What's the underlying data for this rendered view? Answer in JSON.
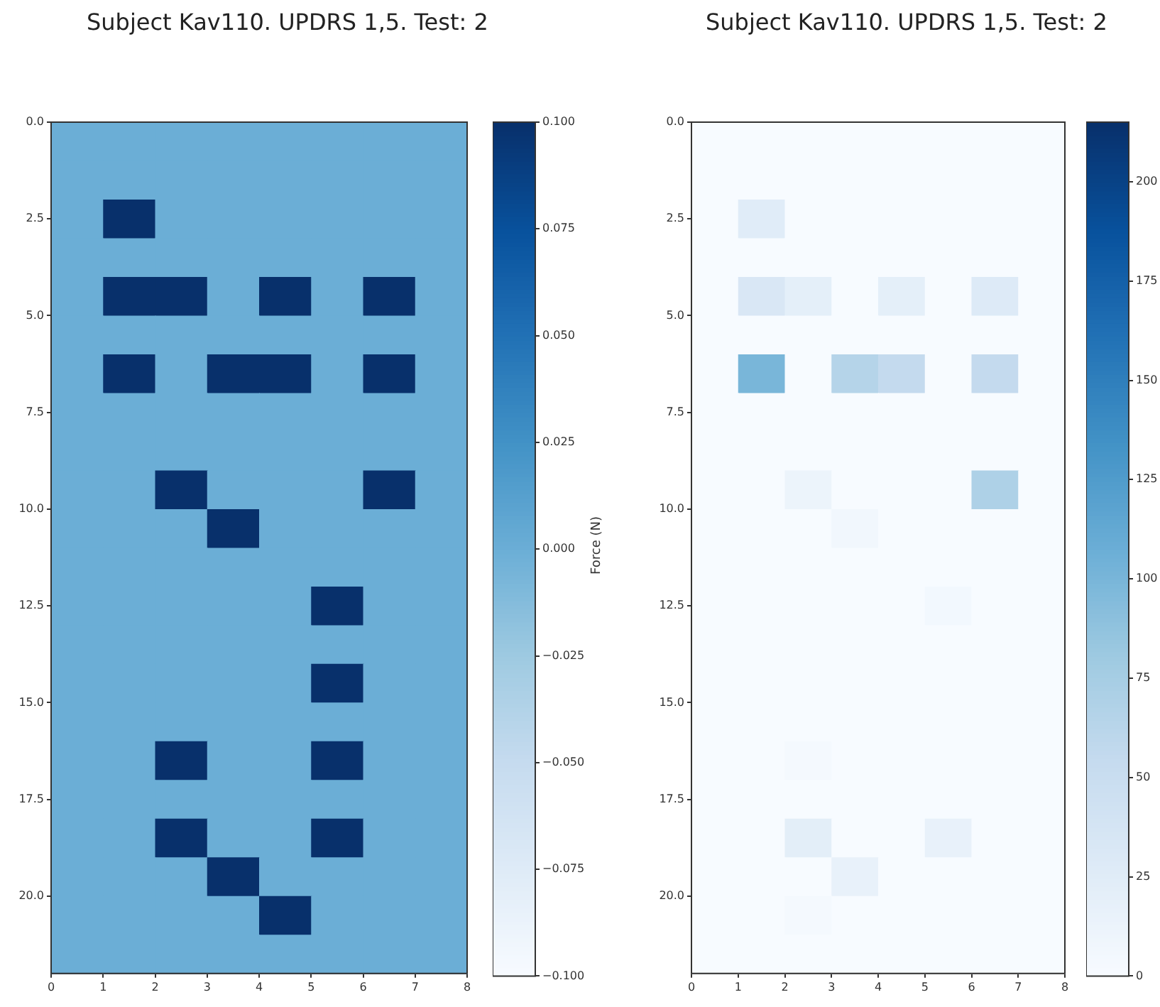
{
  "chart_data": [
    {
      "type": "heatmap",
      "title": "Subject Kav110. UPDRS 1,5. Test: 2",
      "clabel": "Force (N)",
      "xlim": [
        0,
        8
      ],
      "xticks": [
        0,
        1,
        2,
        3,
        4,
        5,
        6,
        7,
        8
      ],
      "ylim": [
        22,
        0
      ],
      "yticks": [
        {
          "value": 0,
          "label": "0.0"
        },
        {
          "value": 2.5,
          "label": "2.5"
        },
        {
          "value": 5,
          "label": "5.0"
        },
        {
          "value": 7.5,
          "label": "7.5"
        },
        {
          "value": 10,
          "label": "10.0"
        },
        {
          "value": 12.5,
          "label": "12.5"
        },
        {
          "value": 15,
          "label": "15.0"
        },
        {
          "value": 17.5,
          "label": "17.5"
        },
        {
          "value": 20,
          "label": "20.0"
        }
      ],
      "clim": [
        -0.1,
        0.1
      ],
      "cticks": [
        {
          "value": -0.1,
          "label": "−0.100"
        },
        {
          "value": -0.075,
          "label": "−0.075"
        },
        {
          "value": -0.05,
          "label": "−0.050"
        },
        {
          "value": -0.025,
          "label": "−0.025"
        },
        {
          "value": 0,
          "label": "0.000"
        },
        {
          "value": 0.025,
          "label": "0.025"
        },
        {
          "value": 0.05,
          "label": "0.050"
        },
        {
          "value": 0.075,
          "label": "0.075"
        },
        {
          "value": 0.1,
          "label": "0.100"
        }
      ],
      "cells": [
        [
          0,
          0,
          0,
          0,
          0,
          0,
          0,
          0
        ],
        [
          0,
          0,
          0,
          0,
          0,
          0,
          0,
          0
        ],
        [
          0,
          0.1,
          0,
          0,
          0,
          0,
          0,
          0
        ],
        [
          0,
          0,
          0,
          0,
          0,
          0,
          0,
          0
        ],
        [
          0,
          0.1,
          0.1,
          0,
          0.1,
          0,
          0.1,
          0
        ],
        [
          0,
          0,
          0,
          0,
          0,
          0,
          0,
          0
        ],
        [
          0,
          0.1,
          0,
          0.1,
          0.1,
          0,
          0.1,
          0
        ],
        [
          0,
          0,
          0,
          0,
          0,
          0,
          0,
          0
        ],
        [
          0,
          0,
          0,
          0,
          0,
          0,
          0,
          0
        ],
        [
          0,
          0,
          0.1,
          0,
          0,
          0,
          0.1,
          0
        ],
        [
          0,
          0,
          0,
          0.1,
          0,
          0,
          0,
          0
        ],
        [
          0,
          0,
          0,
          0,
          0,
          0,
          0,
          0
        ],
        [
          0,
          0,
          0,
          0,
          0,
          0.1,
          0,
          0
        ],
        [
          0,
          0,
          0,
          0,
          0,
          0,
          0,
          0
        ],
        [
          0,
          0,
          0,
          0,
          0,
          0.1,
          0,
          0
        ],
        [
          0,
          0,
          0,
          0,
          0,
          0,
          0,
          0
        ],
        [
          0,
          0,
          0.1,
          0,
          0,
          0.1,
          0,
          0
        ],
        [
          0,
          0,
          0,
          0,
          0,
          0,
          0,
          0
        ],
        [
          0,
          0,
          0.1,
          0,
          0,
          0.1,
          0,
          0
        ],
        [
          0,
          0,
          0,
          0.1,
          0,
          0,
          0,
          0
        ],
        [
          0,
          0,
          0,
          0,
          0.1,
          0,
          0,
          0
        ],
        [
          0,
          0,
          0,
          0,
          0,
          0,
          0,
          0
        ]
      ]
    },
    {
      "type": "heatmap",
      "title": "Subject Kav110. UPDRS 1,5. Test: 2",
      "xlim": [
        0,
        8
      ],
      "xticks": [
        0,
        1,
        2,
        3,
        4,
        5,
        6,
        7,
        8
      ],
      "ylim": [
        22,
        0
      ],
      "yticks": [
        {
          "value": 0,
          "label": "0.0"
        },
        {
          "value": 2.5,
          "label": "2.5"
        },
        {
          "value": 5,
          "label": "5.0"
        },
        {
          "value": 7.5,
          "label": "7.5"
        },
        {
          "value": 10,
          "label": "10.0"
        },
        {
          "value": 12.5,
          "label": "12.5"
        },
        {
          "value": 15,
          "label": "15.0"
        },
        {
          "value": 17.5,
          "label": "17.5"
        },
        {
          "value": 20,
          "label": "20.0"
        }
      ],
      "clim": [
        0,
        215
      ],
      "cticks": [
        0,
        25,
        50,
        75,
        100,
        125,
        150,
        175,
        200
      ],
      "cells": [
        [
          0,
          0,
          0,
          0,
          0,
          0,
          0,
          0
        ],
        [
          0,
          0,
          0,
          0,
          0,
          0,
          0,
          0
        ],
        [
          0,
          25,
          0,
          0,
          0,
          0,
          0,
          0
        ],
        [
          0,
          0,
          0,
          0,
          0,
          0,
          0,
          0
        ],
        [
          0,
          33,
          20,
          0,
          20,
          0,
          28,
          0
        ],
        [
          0,
          0,
          0,
          0,
          0,
          0,
          0,
          0
        ],
        [
          0,
          100,
          0,
          65,
          55,
          0,
          55,
          0
        ],
        [
          0,
          0,
          0,
          0,
          0,
          0,
          0,
          0
        ],
        [
          0,
          0,
          0,
          0,
          0,
          0,
          0,
          0
        ],
        [
          0,
          0,
          12,
          0,
          0,
          0,
          70,
          0
        ],
        [
          0,
          0,
          0,
          6,
          0,
          0,
          0,
          0
        ],
        [
          0,
          0,
          0,
          0,
          0,
          0,
          0,
          0
        ],
        [
          0,
          0,
          0,
          0,
          0,
          5,
          0,
          0
        ],
        [
          0,
          0,
          0,
          0,
          0,
          0,
          0,
          0
        ],
        [
          0,
          0,
          0,
          0,
          0,
          0,
          0,
          0
        ],
        [
          0,
          0,
          0,
          0,
          0,
          0,
          0,
          0
        ],
        [
          0,
          0,
          3,
          0,
          0,
          0,
          0,
          0
        ],
        [
          0,
          0,
          0,
          0,
          0,
          0,
          0,
          0
        ],
        [
          0,
          0,
          22,
          0,
          0,
          16,
          0,
          0
        ],
        [
          0,
          0,
          0,
          16,
          0,
          0,
          0,
          0
        ],
        [
          0,
          0,
          3,
          0,
          0,
          0,
          0,
          0
        ],
        [
          0,
          0,
          0,
          0,
          0,
          0,
          0,
          0
        ]
      ]
    }
  ]
}
